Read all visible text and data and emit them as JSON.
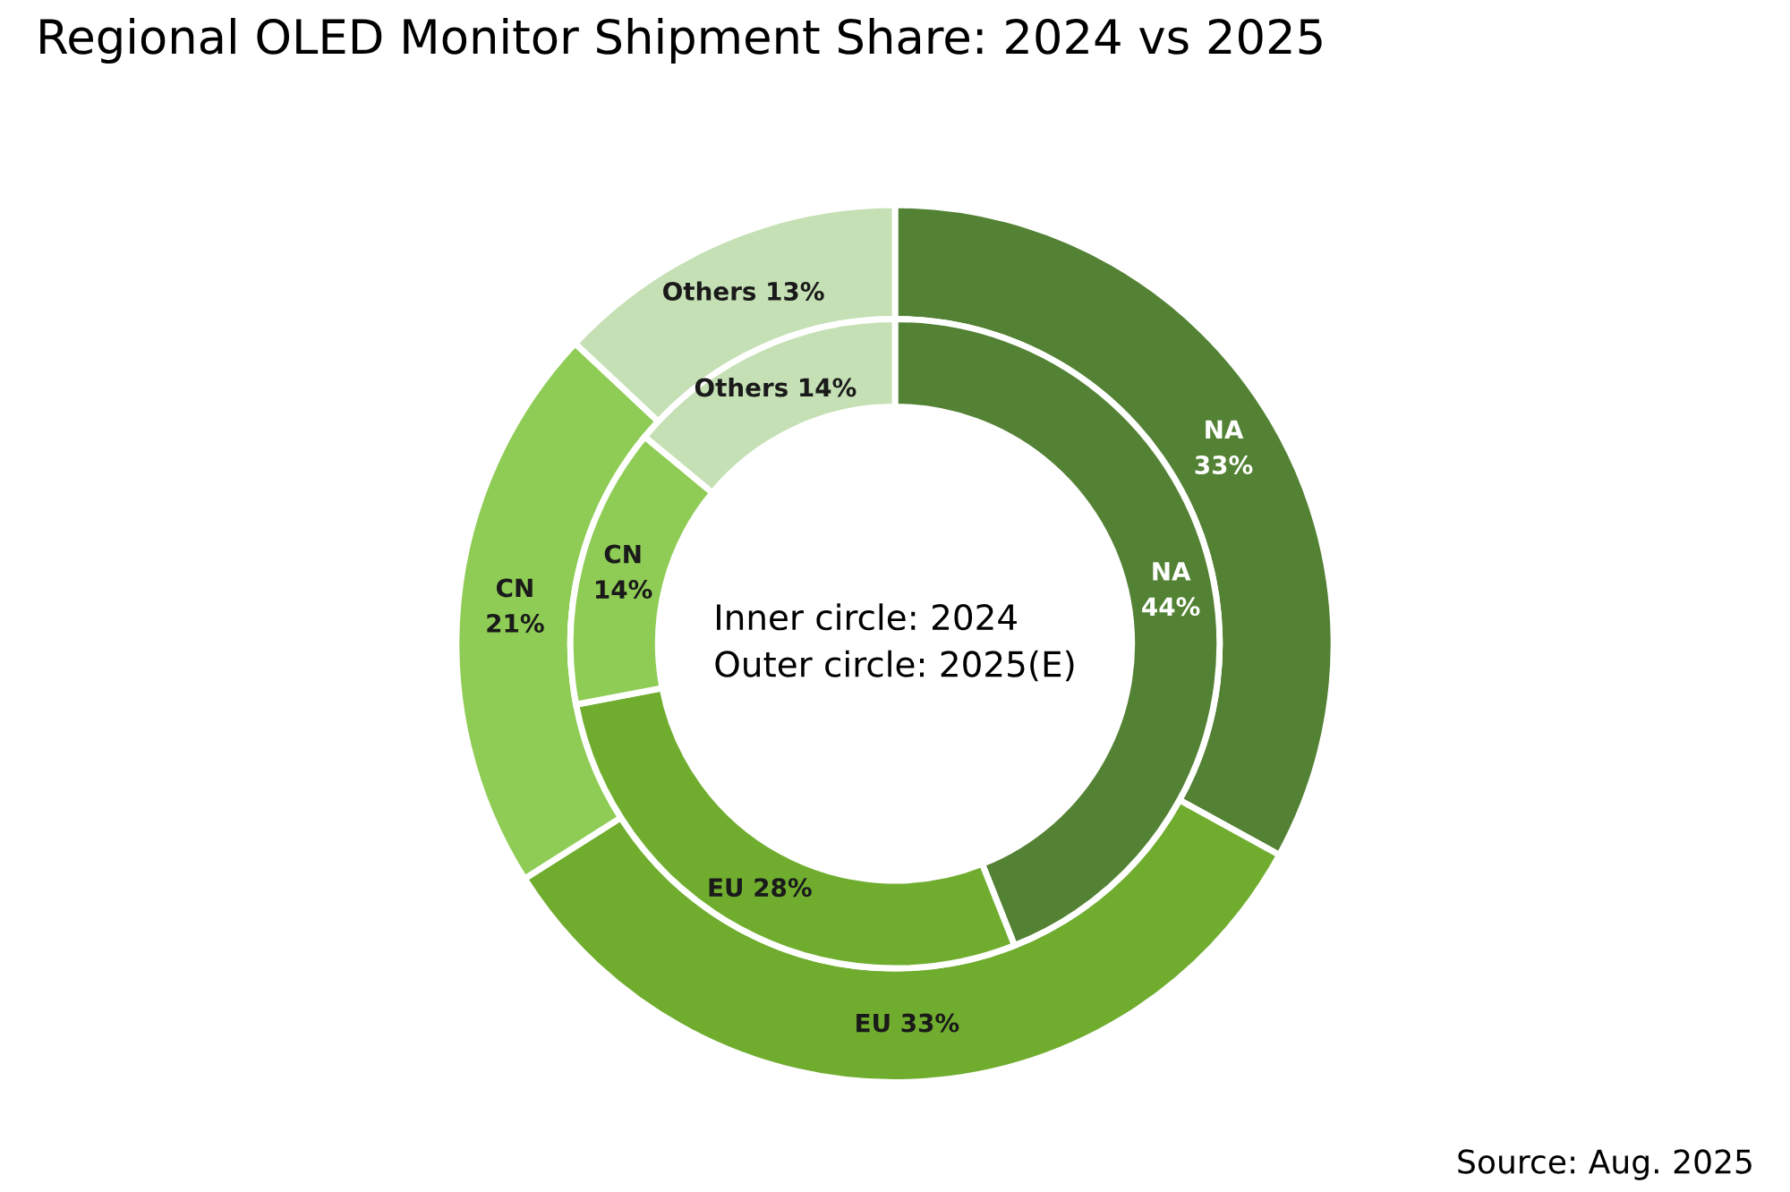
{
  "chart_data": {
    "type": "donut",
    "title": "Regional OLED Monitor Shipment Share: 2024 vs 2025",
    "categories": [
      "NA",
      "EU",
      "CN",
      "Others"
    ],
    "colors": [
      "#548235",
      "#70ad2f",
      "#8fcc55",
      "#c5e0b4"
    ],
    "series": [
      {
        "values": [
          33,
          33,
          21,
          13
        ],
        "value_labels": [
          "33%",
          "33%",
          "21%",
          "13%"
        ]
      },
      {
        "values": [
          44,
          28,
          14,
          14
        ],
        "value_labels": [
          "44%",
          "28%",
          "14%",
          "14%"
        ]
      }
    ],
    "annotations": [
      "Inner circle: 2024\nOuter circle: 2025(E)",
      "Source: Aug. 2025"
    ]
  }
}
